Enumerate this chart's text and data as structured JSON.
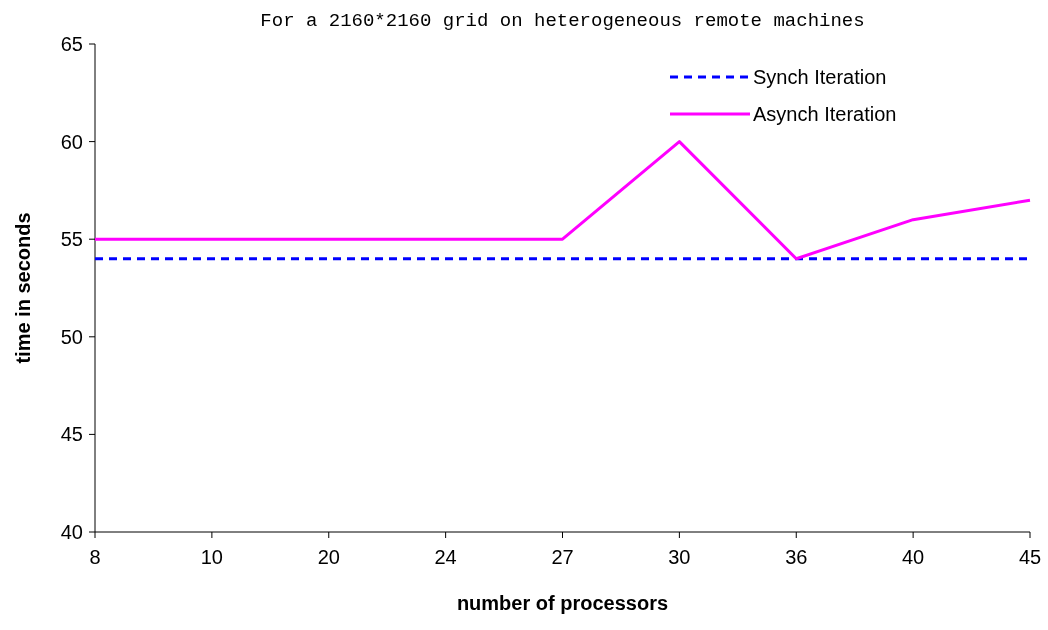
{
  "chart_data": {
    "type": "line",
    "title": "For a 2160*2160 grid on heterogeneous remote machines",
    "xlabel": "number of processors",
    "ylabel": "time in seconds",
    "categories": [
      "8",
      "10",
      "20",
      "24",
      "27",
      "30",
      "36",
      "40",
      "45"
    ],
    "series": [
      {
        "name": "Synch Iteration",
        "color": "#0000ff",
        "values": [
          54,
          54,
          54,
          54,
          54,
          54,
          54,
          54,
          54
        ],
        "line_style": "dashed"
      },
      {
        "name": "Asynch Iteration",
        "color": "#ff00ff",
        "values": [
          55,
          55,
          55,
          55,
          55,
          60,
          54,
          56,
          57
        ],
        "line_style": "solid"
      }
    ],
    "ylim": [
      40,
      65
    ],
    "yticks": [
      40,
      45,
      50,
      55,
      60,
      65
    ],
    "grid": false,
    "legend": "top right",
    "marker": "none"
  }
}
